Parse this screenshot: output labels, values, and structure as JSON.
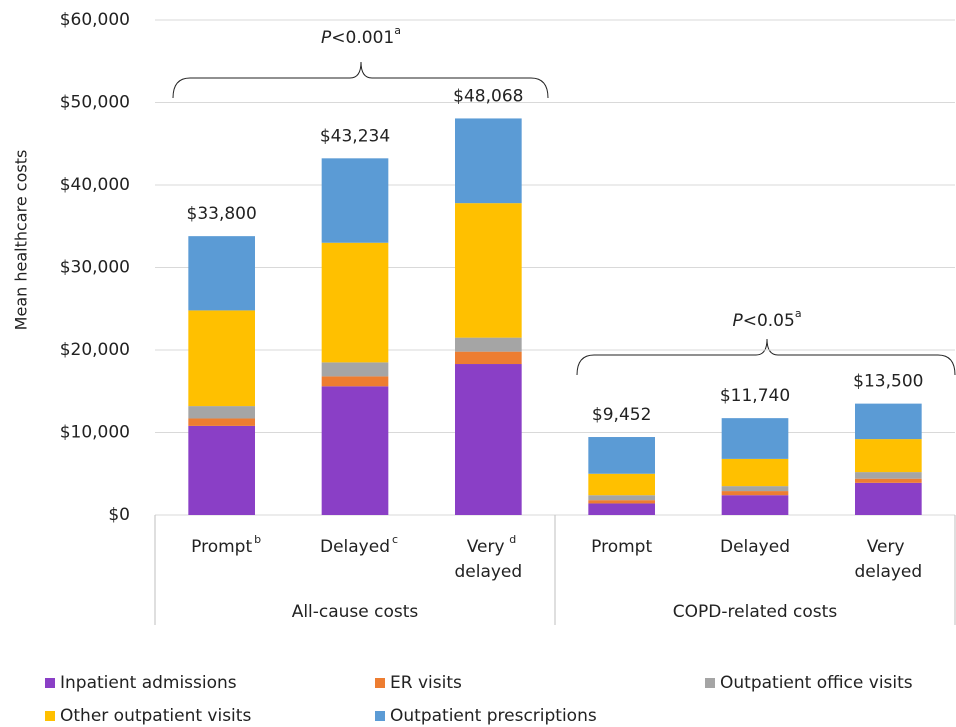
{
  "chart_data": {
    "type": "stacked-bar",
    "y_label": "Mean healthcare  costs",
    "ylim": [
      0,
      60000
    ],
    "yticks": [
      {
        "value": 0,
        "label": "$0"
      },
      {
        "value": 10000,
        "label": "$10,000"
      },
      {
        "value": 20000,
        "label": "$20,000"
      },
      {
        "value": 30000,
        "label": "$30,000"
      },
      {
        "value": 40000,
        "label": "$40,000"
      },
      {
        "value": 50000,
        "label": "$50,000"
      },
      {
        "value": 60000,
        "label": "$60,000"
      }
    ],
    "grid": true,
    "groups": [
      {
        "name": "All-cause costs",
        "categories": [
          "Prompt",
          "Delayed",
          "Very delayed"
        ],
        "notes": [
          "b",
          "c",
          "d"
        ]
      },
      {
        "name": "COPD-related costs",
        "categories": [
          "Prompt",
          "Delayed",
          "Very delayed"
        ]
      }
    ],
    "series": [
      {
        "name": "Inpatient admissions",
        "color": "#8a3fc6",
        "values": [
          10800,
          15600,
          18300,
          1400,
          2400,
          3900
        ]
      },
      {
        "name": "ER visits",
        "color": "#ed7d31",
        "values": [
          900,
          1200,
          1500,
          400,
          500,
          500
        ]
      },
      {
        "name": "Outpatient office visits",
        "color": "#a5a5a5",
        "values": [
          1500,
          1700,
          1700,
          600,
          600,
          800
        ]
      },
      {
        "name": "Other outpatient visits",
        "color": "#ffc000",
        "values": [
          11600,
          14500,
          16300,
          2600,
          3300,
          4000
        ]
      },
      {
        "name": "Outpatient prescriptions",
        "color": "#5b9bd5",
        "values": [
          9000,
          10234,
          10268,
          4452,
          4940,
          4300
        ]
      }
    ],
    "totals": [
      33800,
      43234,
      48068,
      9452,
      11740,
      13500
    ],
    "total_labels": [
      "$33,800",
      "$43,234",
      "$48,068",
      "$9,452",
      "$11,740",
      "$13,500"
    ],
    "annotations": [
      {
        "italic": "P",
        "text": "<0.001",
        "note": "a"
      },
      {
        "italic": "P",
        "text": "<0.05",
        "note": "a"
      }
    ]
  }
}
